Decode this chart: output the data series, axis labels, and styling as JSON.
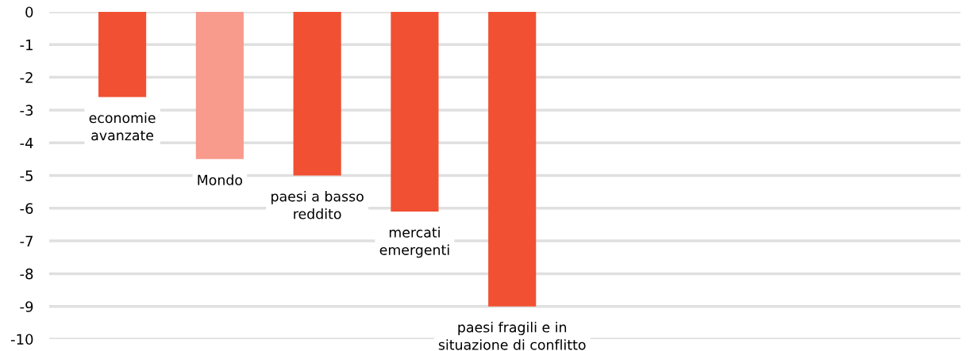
{
  "chart_data": {
    "type": "bar",
    "categories": [
      null,
      null,
      null,
      null,
      null,
      null,
      null,
      null
    ],
    "values": [
      -2.6,
      -4.5,
      -5.0,
      -6.1,
      -9.0,
      null,
      null,
      null
    ],
    "colors": [
      "#f15032",
      "#f89a8c",
      "#f15032",
      "#f15032",
      "#f15032",
      "#f15032",
      "#f15032",
      "#f15032"
    ],
    "annotations": [
      "economie\navanzate",
      "Mondo",
      "paesi a basso\nreddito",
      "mercati\nemergenti",
      "paesi fragili e in\nsituazione di conflitto"
    ],
    "ylim": [
      -10,
      0
    ],
    "yticks": [
      0,
      -1,
      -2,
      -3,
      -4,
      -5,
      -6,
      -7,
      -8,
      -9,
      -10
    ],
    "grid": "y"
  }
}
